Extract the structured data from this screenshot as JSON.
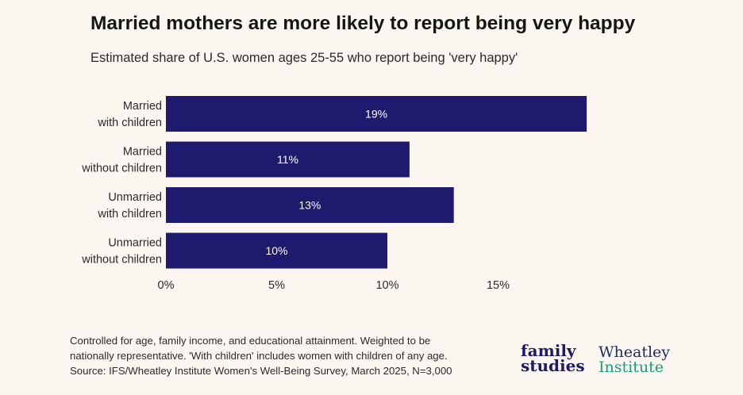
{
  "title": "Married mothers are more likely to report being very happy",
  "subtitle": "Estimated share of U.S. women ages 25-55 who report being 'very happy'",
  "notes": [
    "Controlled for age, family income, and educational attainment. Weighted to be",
    "nationally representative. 'With children' includes women with children of any age.",
    "Source: IFS/Wheatley Institute Women's Well-Being Survey, March 2025, N=3,000"
  ],
  "logos": {
    "family_studies": [
      "family",
      "studies"
    ],
    "wheatley": [
      "Wheatley",
      "Institute"
    ]
  },
  "colors": {
    "bar": "#1e1a6e",
    "background": "#fcf6f0",
    "bar_label": "#ffffff"
  },
  "chart_data": {
    "type": "bar",
    "orientation": "horizontal",
    "categories": [
      [
        "Married",
        "with children"
      ],
      [
        "Married",
        "without children"
      ],
      [
        "Unmarried",
        "with children"
      ],
      [
        "Unmarried",
        "without children"
      ]
    ],
    "values": [
      19,
      11,
      13,
      10
    ],
    "value_labels": [
      "19%",
      "11%",
      "13%",
      "10%"
    ],
    "xlim": [
      0,
      19
    ],
    "xticks": [
      0,
      5,
      10,
      15
    ],
    "xtick_labels": [
      "0%",
      "5%",
      "10%",
      "15%"
    ],
    "grid": false,
    "legend": "none"
  }
}
